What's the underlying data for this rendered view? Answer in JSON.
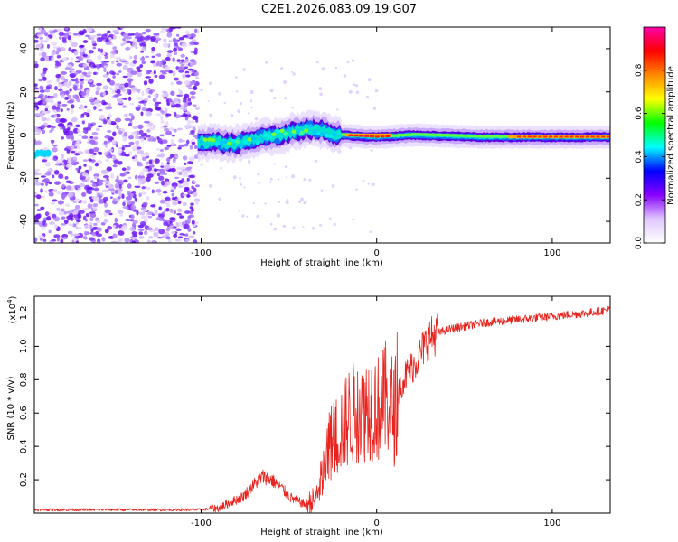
{
  "figure": {
    "title": "C2E1.2026.083.09.19.G07"
  },
  "chart_data": [
    {
      "type": "heatmap",
      "name": "spectrogram",
      "title": "C2E1.2026.083.09.19.G07",
      "xlabel": "Height of straight line (km)",
      "ylabel": "Frequency (Hz)",
      "xlim": [
        -195,
        133
      ],
      "ylim": [
        -50,
        50
      ],
      "x_ticks": [
        -100,
        0,
        100
      ],
      "x_tick_labels": [
        "-100",
        "0",
        "100"
      ],
      "y_ticks": [
        -40,
        -20,
        0,
        20,
        40
      ],
      "y_tick_labels": [
        "-40",
        "-20",
        "0",
        "20",
        "40"
      ],
      "noise_region_km": [
        -195,
        -102
      ],
      "signal_onset_km": -102,
      "signal_track": [
        {
          "x": -195,
          "y": -8
        },
        {
          "x": -185,
          "y": -7
        },
        {
          "x": -100,
          "y": -3
        },
        {
          "x": -80,
          "y": -4
        },
        {
          "x": -70,
          "y": -2
        },
        {
          "x": -55,
          "y": 0
        },
        {
          "x": -40,
          "y": 3
        },
        {
          "x": -30,
          "y": 2
        },
        {
          "x": -22,
          "y": 0
        },
        {
          "x": 0,
          "y": -1
        },
        {
          "x": 20,
          "y": 0
        },
        {
          "x": 60,
          "y": -1
        },
        {
          "x": 100,
          "y": -1
        },
        {
          "x": 133,
          "y": -1
        }
      ],
      "colorbar": {
        "label": "Normalized spectral amplitude",
        "range": [
          0,
          1
        ],
        "ticks": [
          0.0,
          0.2,
          0.4,
          0.6,
          0.8
        ],
        "tick_labels": [
          "0.0",
          "0.2",
          "0.4",
          "0.6",
          "0.8"
        ],
        "colors": [
          "#ffffff",
          "#e0c8ff",
          "#8800ff",
          "#0000ff",
          "#00ffff",
          "#00ff00",
          "#ffff00",
          "#ff8800",
          "#ff0000",
          "#ff00aa"
        ]
      }
    },
    {
      "type": "line",
      "name": "snr",
      "xlabel": "Height of straight line (km)",
      "ylabel": "SNR (10 * v/v)",
      "y_scale_label": "(x10",
      "y_scale_exp": "4",
      "y_scale_close": ")",
      "xlim": [
        -195,
        133
      ],
      "ylim": [
        0,
        1.3
      ],
      "x_ticks": [
        -100,
        0,
        100
      ],
      "x_tick_labels": [
        "-100",
        "0",
        "100"
      ],
      "y_ticks": [
        0.2,
        0.4,
        0.6,
        0.8,
        1.0,
        1.2
      ],
      "y_tick_labels": [
        "0.2",
        "0.4",
        "0.6",
        "0.8",
        "1.0",
        "1.2"
      ],
      "color": "#e8231e",
      "series": [
        {
          "name": "SNR",
          "x": [
            -195,
            -180,
            -160,
            -140,
            -120,
            -100,
            -90,
            -82,
            -76,
            -70,
            -65,
            -60,
            -55,
            -50,
            -45,
            -40,
            -35,
            -30,
            -26,
            -22,
            -18,
            -14,
            -10,
            -6,
            -2,
            2,
            6,
            10,
            14,
            18,
            22,
            26,
            30,
            35,
            40,
            50,
            60,
            70,
            80,
            90,
            100,
            110,
            120,
            133
          ],
          "y": [
            0.02,
            0.02,
            0.02,
            0.02,
            0.02,
            0.02,
            0.03,
            0.07,
            0.1,
            0.17,
            0.22,
            0.2,
            0.16,
            0.1,
            0.07,
            0.05,
            0.08,
            0.25,
            0.42,
            0.48,
            0.55,
            0.6,
            0.63,
            0.64,
            0.65,
            0.62,
            0.7,
            0.6,
            0.78,
            0.85,
            0.9,
            0.98,
            1.05,
            1.08,
            1.1,
            1.12,
            1.14,
            1.15,
            1.16,
            1.17,
            1.18,
            1.19,
            1.2,
            1.22
          ]
        }
      ]
    }
  ]
}
